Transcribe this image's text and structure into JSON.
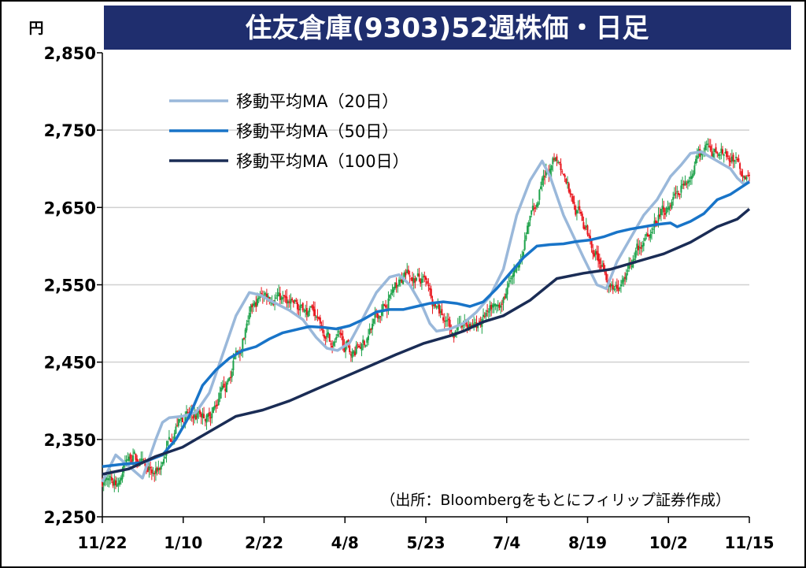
{
  "chart_data": {
    "type": "candlestick",
    "title": "住友倉庫(9303)52週株価・日足",
    "y_unit": "円",
    "ylim": [
      2250,
      2850
    ],
    "y_ticks": [
      "2,250",
      "2,350",
      "2,450",
      "2,550",
      "2,650",
      "2,750",
      "2,850"
    ],
    "x_tick_labels": [
      "11/22",
      "1/10",
      "2/22",
      "4/8",
      "5/23",
      "7/4",
      "8/19",
      "10/2",
      "11/15"
    ],
    "source_note": "（出所：Bloombergをもとにフィリップ証券作成）",
    "grid": "horizontal",
    "legend_position": "top-left",
    "colors": {
      "title_bg": "#1f2e6e",
      "up": "#1ea24a",
      "down": "#e8141b",
      "ma20": "#9ab8da",
      "ma50": "#1874c8",
      "ma100": "#1a2c55"
    },
    "series": [
      {
        "name": "移動平均MA（20日）",
        "key": "ma20",
        "points": [
          [
            0,
            2295
          ],
          [
            10,
            2330
          ],
          [
            20,
            2315
          ],
          [
            30,
            2300
          ],
          [
            40,
            2350
          ],
          [
            45,
            2372
          ],
          [
            50,
            2378
          ],
          [
            60,
            2380
          ],
          [
            70,
            2385
          ],
          [
            80,
            2410
          ],
          [
            90,
            2460
          ],
          [
            100,
            2510
          ],
          [
            110,
            2540
          ],
          [
            118,
            2537
          ],
          [
            125,
            2530
          ],
          [
            140,
            2517
          ],
          [
            150,
            2505
          ],
          [
            160,
            2482
          ],
          [
            168,
            2468
          ],
          [
            176,
            2465
          ],
          [
            185,
            2475
          ],
          [
            195,
            2507
          ],
          [
            205,
            2540
          ],
          [
            215,
            2560
          ],
          [
            222,
            2563
          ],
          [
            230,
            2550
          ],
          [
            240,
            2520
          ],
          [
            245,
            2500
          ],
          [
            250,
            2490
          ],
          [
            260,
            2493
          ],
          [
            270,
            2500
          ],
          [
            280,
            2515
          ],
          [
            290,
            2535
          ],
          [
            300,
            2570
          ],
          [
            310,
            2640
          ],
          [
            320,
            2685
          ],
          [
            329,
            2710
          ],
          [
            335,
            2690
          ],
          [
            345,
            2640
          ],
          [
            360,
            2585
          ],
          [
            370,
            2550
          ],
          [
            377,
            2545
          ],
          [
            385,
            2580
          ],
          [
            395,
            2610
          ],
          [
            405,
            2640
          ],
          [
            415,
            2660
          ],
          [
            425,
            2690
          ],
          [
            433,
            2705
          ],
          [
            440,
            2720
          ],
          [
            448,
            2722
          ],
          [
            455,
            2715
          ],
          [
            460,
            2710
          ],
          [
            470,
            2700
          ],
          [
            475,
            2688
          ],
          [
            480,
            2680
          ],
          [
            484,
            2684
          ]
        ]
      },
      {
        "name": "移動平均MA（50日）",
        "key": "ma50",
        "points": [
          [
            0,
            2315
          ],
          [
            15,
            2318
          ],
          [
            30,
            2320
          ],
          [
            45,
            2330
          ],
          [
            55,
            2350
          ],
          [
            65,
            2380
          ],
          [
            75,
            2420
          ],
          [
            85,
            2440
          ],
          [
            95,
            2455
          ],
          [
            105,
            2465
          ],
          [
            115,
            2470
          ],
          [
            125,
            2480
          ],
          [
            135,
            2488
          ],
          [
            145,
            2492
          ],
          [
            155,
            2496
          ],
          [
            165,
            2495
          ],
          [
            175,
            2493
          ],
          [
            185,
            2497
          ],
          [
            195,
            2505
          ],
          [
            205,
            2515
          ],
          [
            215,
            2518
          ],
          [
            225,
            2518
          ],
          [
            235,
            2522
          ],
          [
            245,
            2526
          ],
          [
            255,
            2528
          ],
          [
            265,
            2526
          ],
          [
            275,
            2522
          ],
          [
            285,
            2528
          ],
          [
            295,
            2545
          ],
          [
            305,
            2565
          ],
          [
            315,
            2585
          ],
          [
            325,
            2600
          ],
          [
            335,
            2602
          ],
          [
            345,
            2603
          ],
          [
            355,
            2606
          ],
          [
            365,
            2608
          ],
          [
            375,
            2612
          ],
          [
            385,
            2618
          ],
          [
            395,
            2622
          ],
          [
            405,
            2625
          ],
          [
            415,
            2628
          ],
          [
            425,
            2630
          ],
          [
            430,
            2625
          ],
          [
            440,
            2632
          ],
          [
            450,
            2642
          ],
          [
            460,
            2660
          ],
          [
            470,
            2667
          ],
          [
            484,
            2683
          ]
        ]
      },
      {
        "name": "移動平均MA（100日）",
        "key": "ma100",
        "points": [
          [
            0,
            2305
          ],
          [
            20,
            2312
          ],
          [
            40,
            2328
          ],
          [
            60,
            2340
          ],
          [
            80,
            2360
          ],
          [
            100,
            2380
          ],
          [
            120,
            2388
          ],
          [
            140,
            2400
          ],
          [
            160,
            2415
          ],
          [
            180,
            2430
          ],
          [
            200,
            2445
          ],
          [
            220,
            2460
          ],
          [
            240,
            2474
          ],
          [
            260,
            2484
          ],
          [
            270,
            2490
          ],
          [
            285,
            2502
          ],
          [
            300,
            2510
          ],
          [
            320,
            2530
          ],
          [
            340,
            2558
          ],
          [
            360,
            2565
          ],
          [
            380,
            2570
          ],
          [
            400,
            2580
          ],
          [
            420,
            2590
          ],
          [
            440,
            2605
          ],
          [
            460,
            2625
          ],
          [
            475,
            2635
          ],
          [
            484,
            2648
          ]
        ]
      }
    ]
  }
}
